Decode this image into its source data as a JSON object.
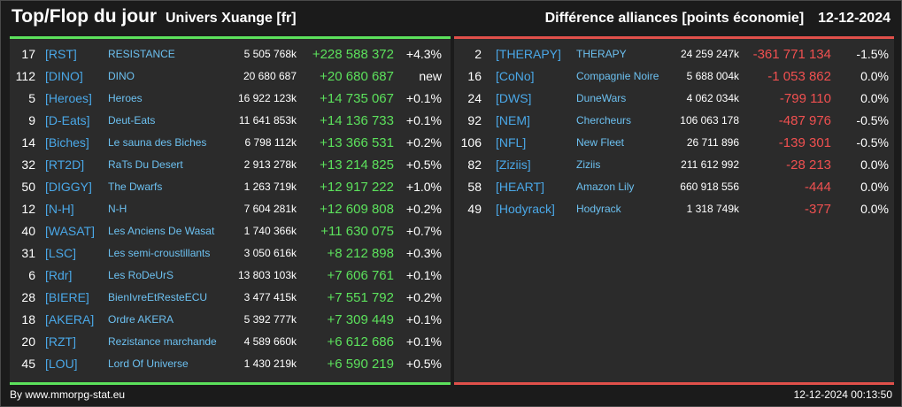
{
  "header": {
    "title": "Top/Flop du jour",
    "universe": "Univers Xuange [fr]",
    "category": "Différence alliances [points économie]",
    "date": "12-12-2024"
  },
  "colors": {
    "background": "#1b1b1b",
    "panel": "#2b2b2b",
    "top_accent": "#5ce15c",
    "flop_accent": "#e0504a",
    "tag_blue": "#4aa8e8"
  },
  "top": [
    {
      "rank": "17",
      "tag": "[RST]",
      "name": "RESISTANCE",
      "points": "5 505 768k",
      "diff": "+228 588 372",
      "pct": "+4.3%"
    },
    {
      "rank": "112",
      "tag": "[DINO]",
      "name": "DINO",
      "points": "20 680 687",
      "diff": "+20 680 687",
      "pct": "new"
    },
    {
      "rank": "5",
      "tag": "[Heroes]",
      "name": "Heroes",
      "points": "16 922 123k",
      "diff": "+14 735 067",
      "pct": "+0.1%"
    },
    {
      "rank": "9",
      "tag": "[D-Eats]",
      "name": "Deut-Eats",
      "points": "11 641 853k",
      "diff": "+14 136 733",
      "pct": "+0.1%"
    },
    {
      "rank": "14",
      "tag": "[Biches]",
      "name": "Le sauna des Biches",
      "points": "6 798 112k",
      "diff": "+13 366 531",
      "pct": "+0.2%"
    },
    {
      "rank": "32",
      "tag": "[RT2D]",
      "name": "RaTs Du Desert",
      "points": "2 913 278k",
      "diff": "+13 214 825",
      "pct": "+0.5%"
    },
    {
      "rank": "50",
      "tag": "[DIGGY]",
      "name": "The Dwarfs",
      "points": "1 263 719k",
      "diff": "+12 917 222",
      "pct": "+1.0%"
    },
    {
      "rank": "12",
      "tag": "[N-H]",
      "name": "N-H",
      "points": "7 604 281k",
      "diff": "+12 609 808",
      "pct": "+0.2%"
    },
    {
      "rank": "40",
      "tag": "[WASAT]",
      "name": "Les Anciens De Wasat",
      "points": "1 740 366k",
      "diff": "+11 630 075",
      "pct": "+0.7%"
    },
    {
      "rank": "31",
      "tag": "[LSC]",
      "name": "Les semi-croustillants",
      "points": "3 050 616k",
      "diff": "+8 212 898",
      "pct": "+0.3%"
    },
    {
      "rank": "6",
      "tag": "[Rdr]",
      "name": "Les RoDeUrS",
      "points": "13 803 103k",
      "diff": "+7 606 761",
      "pct": "+0.1%"
    },
    {
      "rank": "28",
      "tag": "[BIERE]",
      "name": "BienIvreEtResteECU",
      "points": "3 477 415k",
      "diff": "+7 551 792",
      "pct": "+0.2%"
    },
    {
      "rank": "18",
      "tag": "[AKERA]",
      "name": "Ordre AKERA",
      "points": "5 392 777k",
      "diff": "+7 309 449",
      "pct": "+0.1%"
    },
    {
      "rank": "20",
      "tag": "[RZT]",
      "name": "Rezistance marchande",
      "points": "4 589 660k",
      "diff": "+6 612 686",
      "pct": "+0.1%"
    },
    {
      "rank": "45",
      "tag": "[LOU]",
      "name": "Lord Of Universe",
      "points": "1 430 219k",
      "diff": "+6 590 219",
      "pct": "+0.5%"
    }
  ],
  "flop": [
    {
      "rank": "2",
      "tag": "[THERAPY]",
      "name": "THERAPY",
      "points": "24 259 247k",
      "diff": "-361 771 134",
      "pct": "-1.5%"
    },
    {
      "rank": "16",
      "tag": "[CoNo]",
      "name": "Compagnie Noire",
      "points": "5 688 004k",
      "diff": "-1 053 862",
      "pct": "0.0%"
    },
    {
      "rank": "24",
      "tag": "[DWS]",
      "name": "DuneWars",
      "points": "4 062 034k",
      "diff": "-799 110",
      "pct": "0.0%"
    },
    {
      "rank": "92",
      "tag": "[NEM]",
      "name": "Chercheurs",
      "points": "106 063 178",
      "diff": "-487 976",
      "pct": "-0.5%"
    },
    {
      "rank": "106",
      "tag": "[NFL]",
      "name": "New Fleet",
      "points": "26 711 896",
      "diff": "-139 301",
      "pct": "-0.5%"
    },
    {
      "rank": "82",
      "tag": "[Ziziis]",
      "name": "Ziziis",
      "points": "211 612 992",
      "diff": "-28 213",
      "pct": "0.0%"
    },
    {
      "rank": "58",
      "tag": "[HEART]",
      "name": "Amazon Lily",
      "points": "660 918 556",
      "diff": "-444",
      "pct": "0.0%"
    },
    {
      "rank": "49",
      "tag": "[Hodyrack]",
      "name": "Hodyrack",
      "points": "1 318 749k",
      "diff": "-377",
      "pct": "0.0%"
    }
  ],
  "footer": {
    "source": "By www.mmorpg-stat.eu",
    "timestamp": "12-12-2024 00:13:50"
  }
}
